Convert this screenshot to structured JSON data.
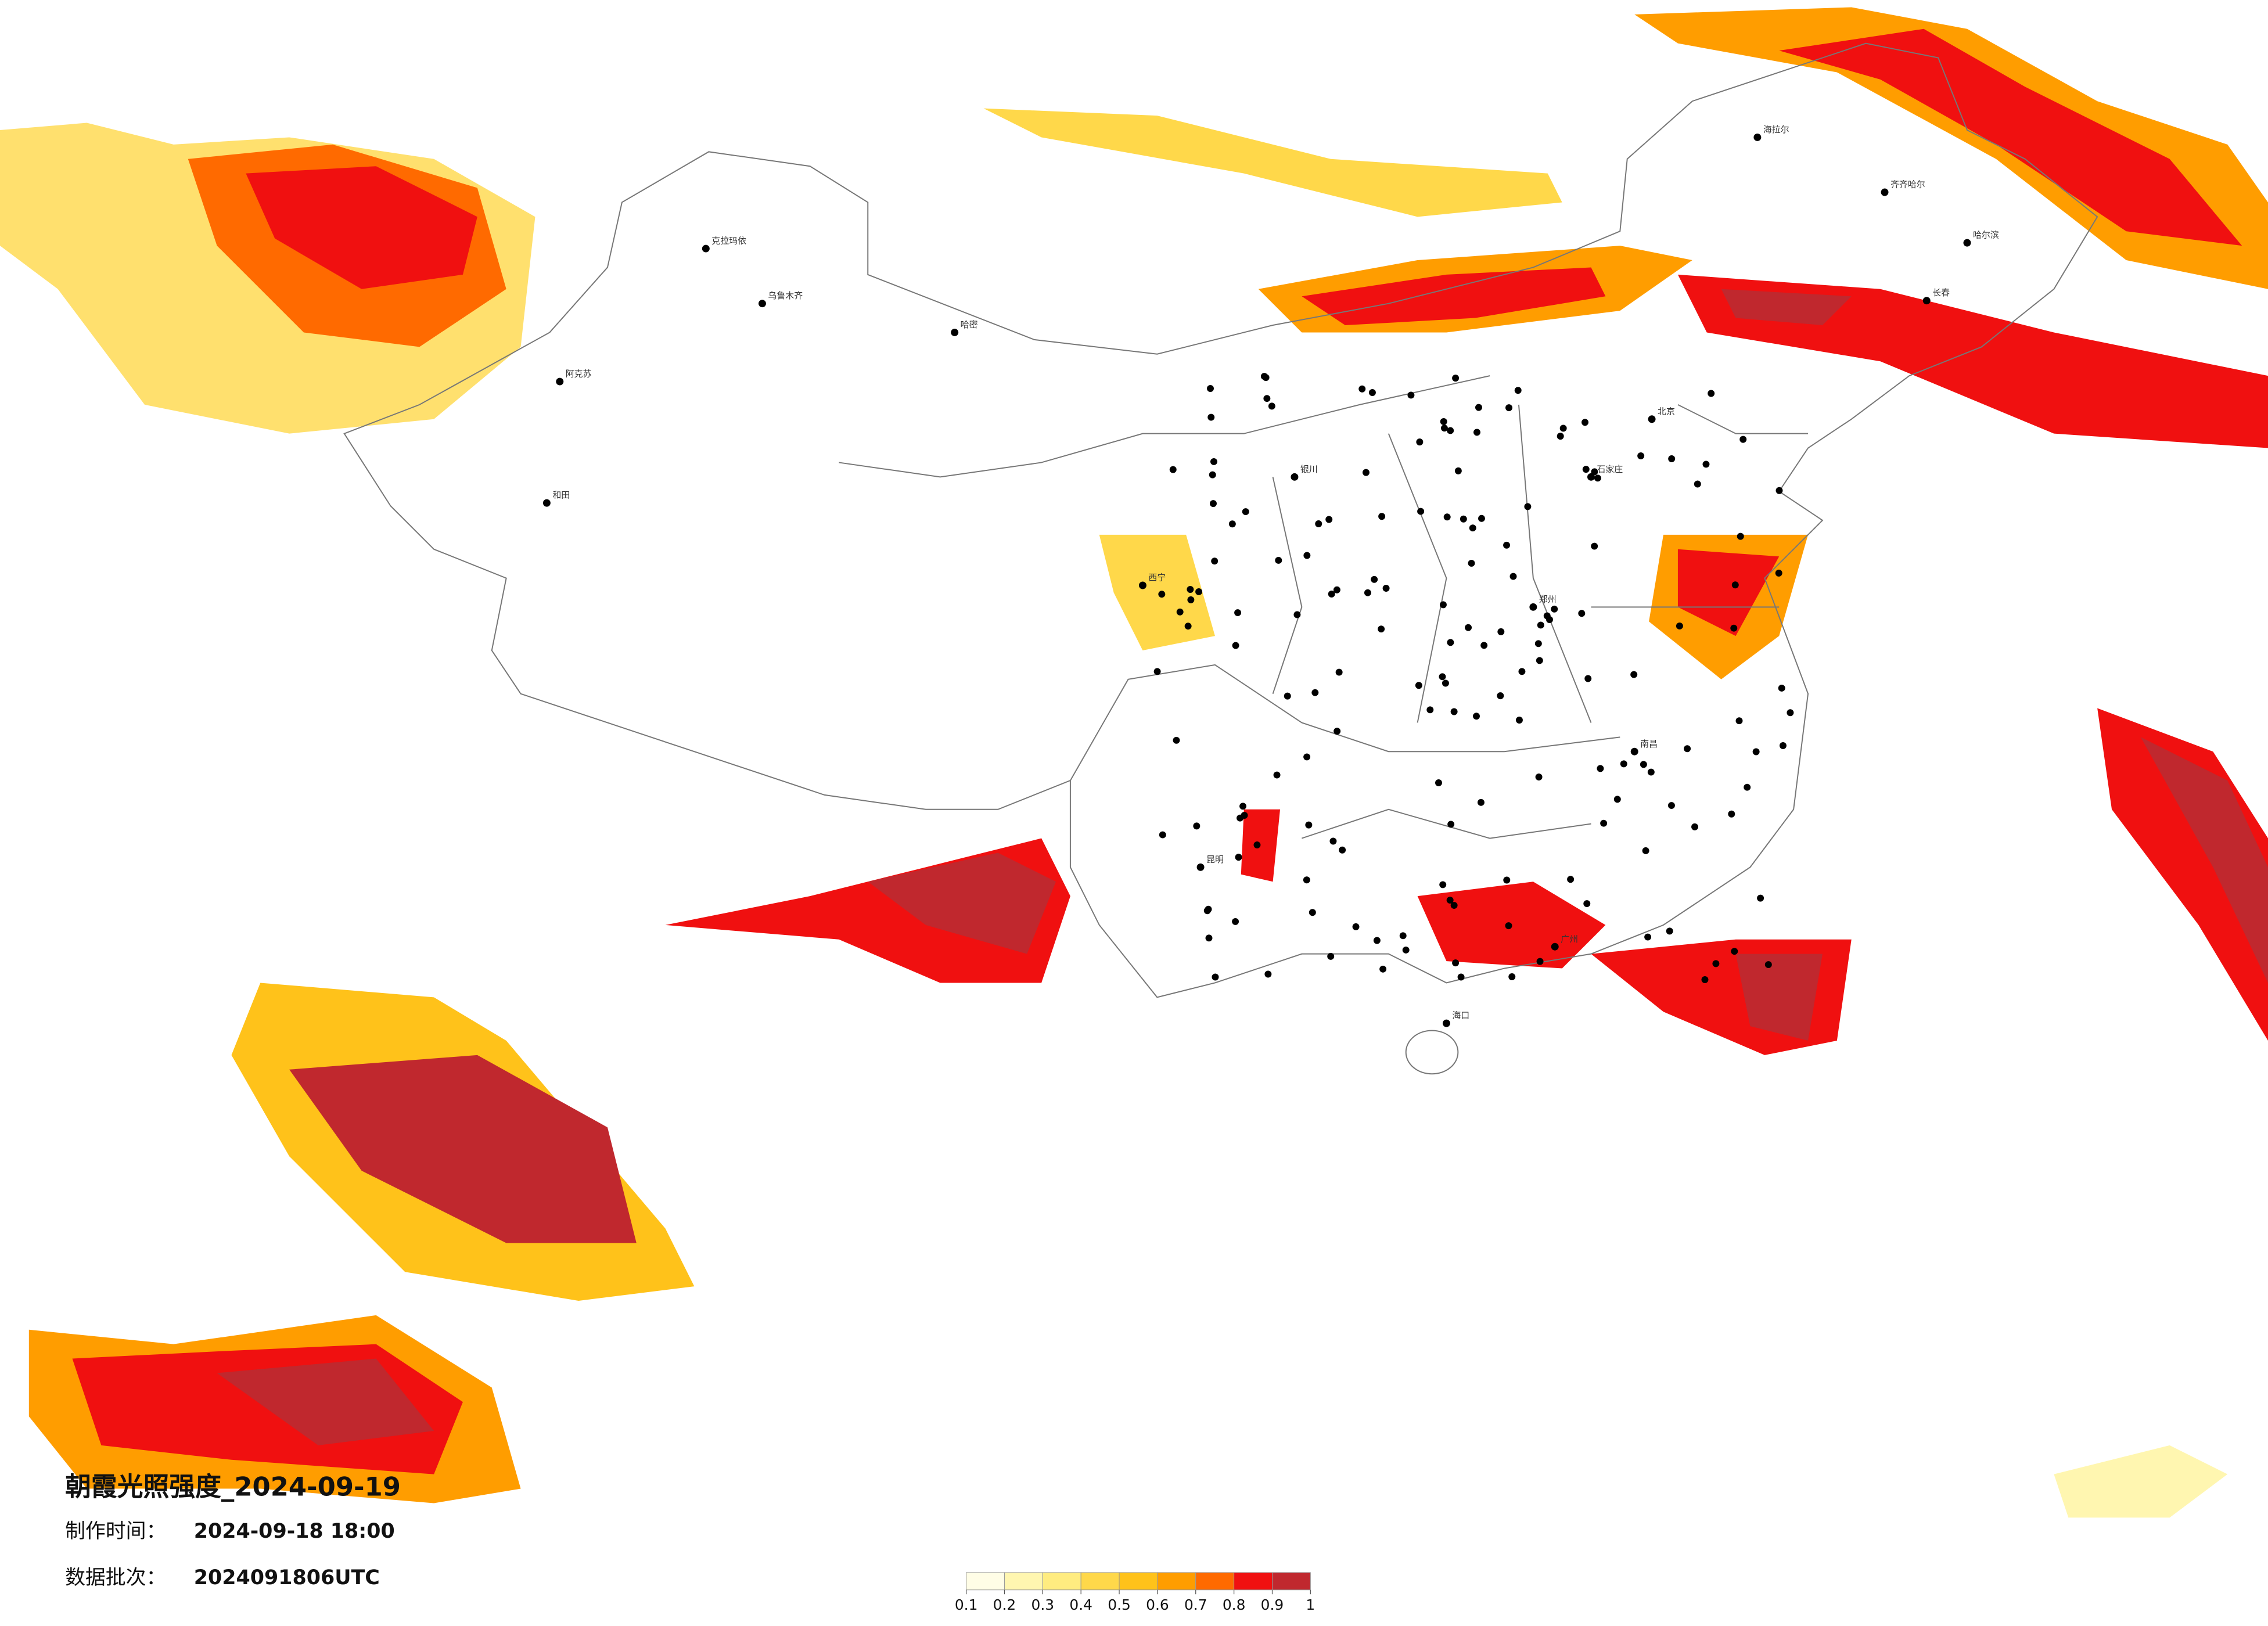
{
  "title": "朝霞光照强度_2024-09-19",
  "made_label": "制作时间：",
  "made_time": "2024-09-18 18:00",
  "batch_label": "数据批次：",
  "batch": "2024091806UTC",
  "colorbar": {
    "ticks": [
      0.1,
      0.2,
      0.3,
      0.4,
      0.5,
      0.6,
      0.7,
      0.8,
      0.9,
      1
    ],
    "colors": [
      "#fffde6",
      "#fff6b0",
      "#ffec80",
      "#ffd84a",
      "#ffc21a",
      "#ff9d00",
      "#ff6a00",
      "#f01010",
      "#c0282e"
    ]
  },
  "cities": [
    "乌鲁木齐",
    "克拉玛依",
    "哈密",
    "阿克苏",
    "和田",
    "海拉尔",
    "齐齐哈尔",
    "哈尔滨",
    "长春",
    "北京",
    "石家庄",
    "西宁",
    "银川",
    "郑州",
    "南昌",
    "广州",
    "海口",
    "昆明"
  ]
}
